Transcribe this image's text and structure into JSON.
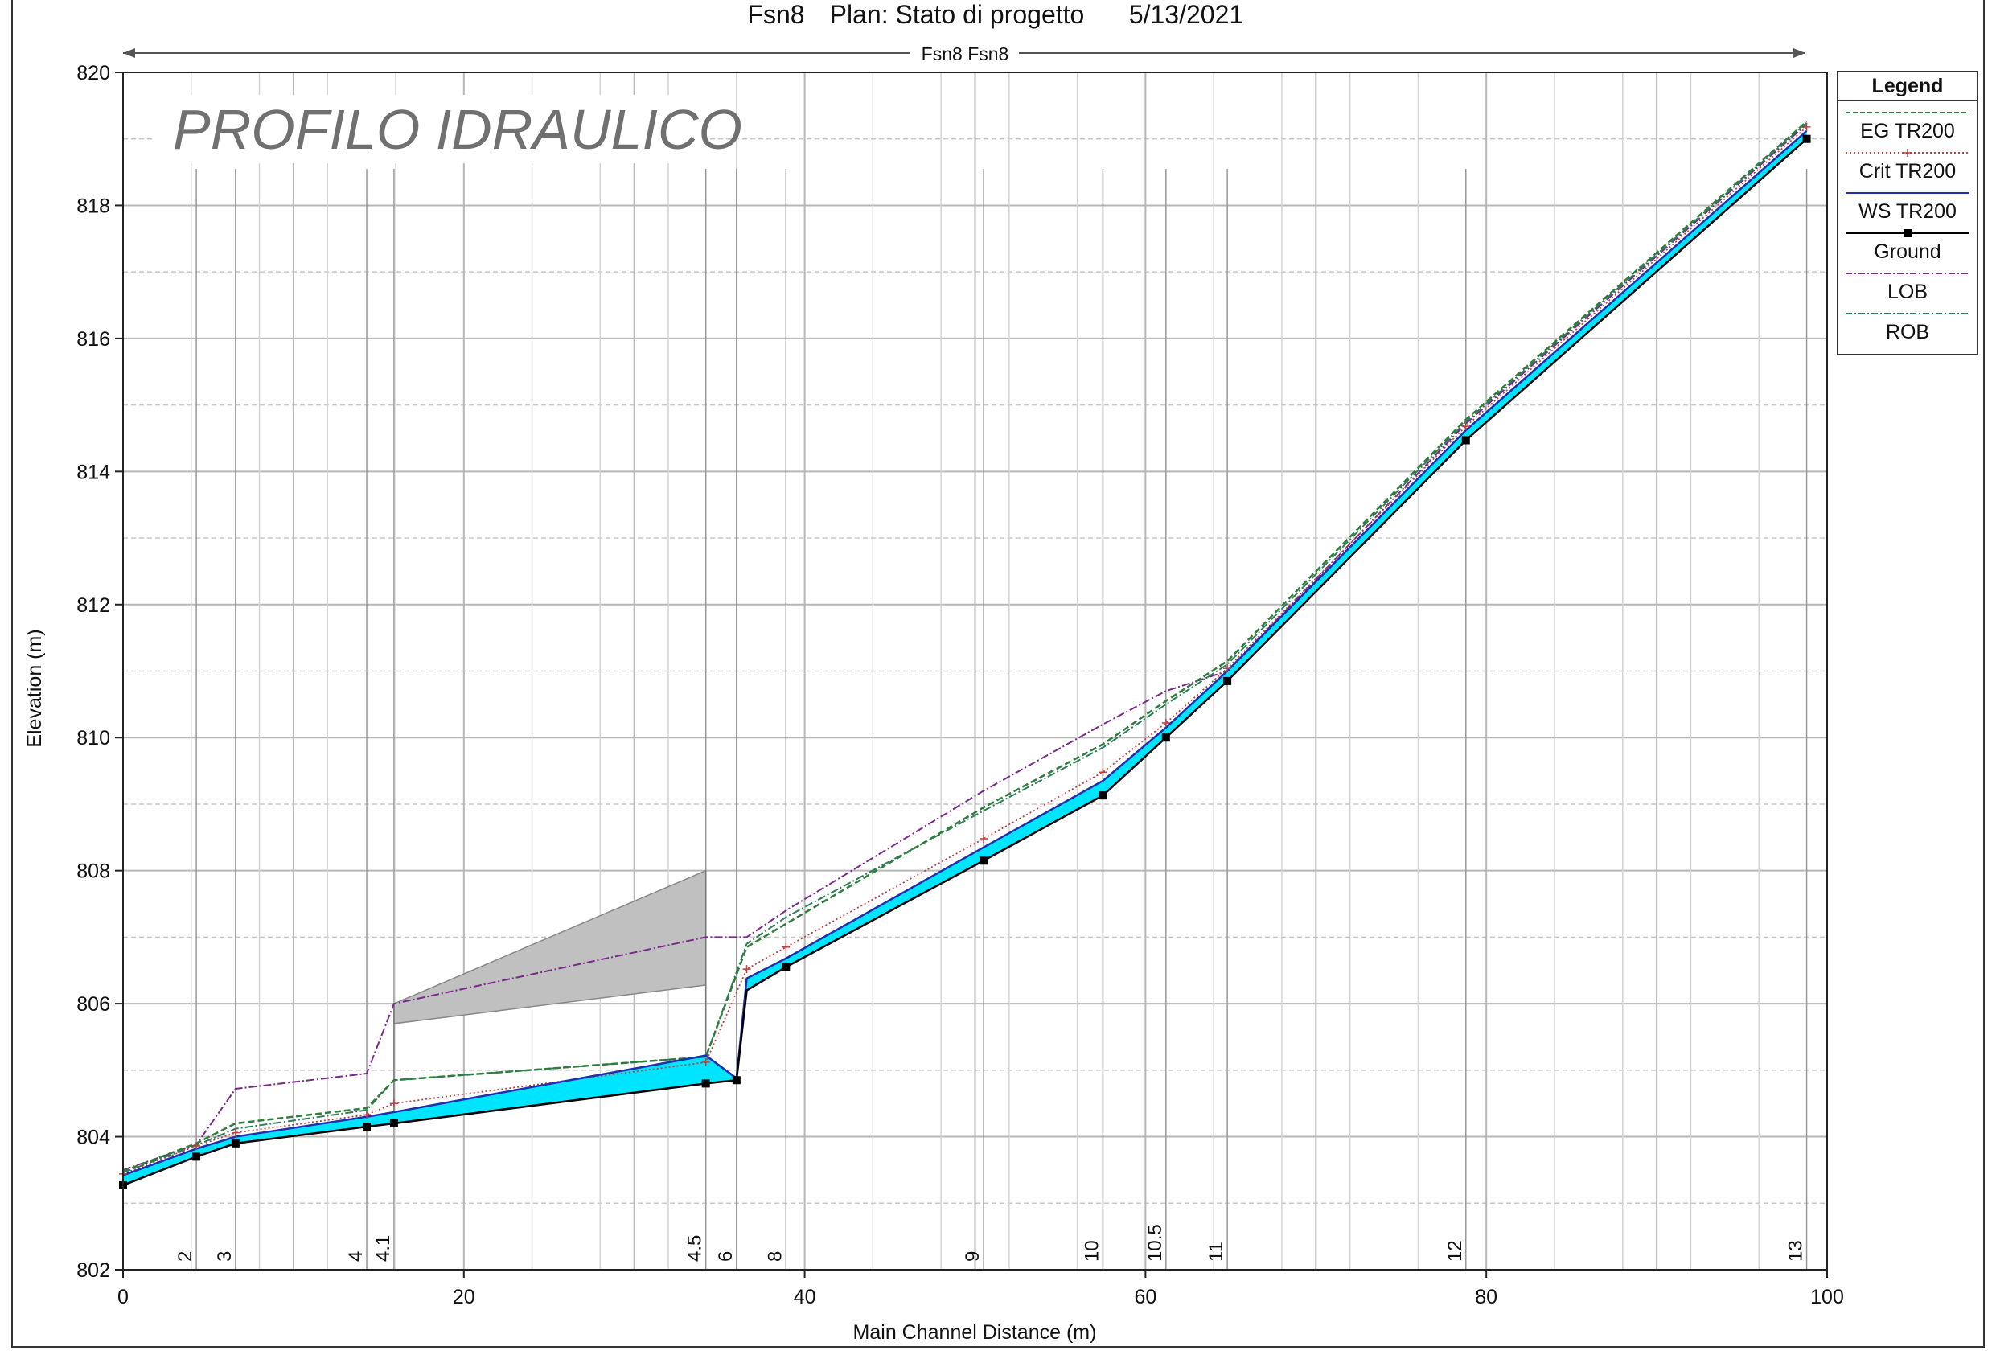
{
  "header": {
    "title": "Fsn8",
    "plan": "Plan: Stato di progetto",
    "date": "5/13/2021",
    "reach_label": "Fsn8 Fsn8"
  },
  "watermark": "PROFILO IDRAULICO",
  "legend": {
    "title": "Legend",
    "entries": [
      {
        "label": "EG  TR200",
        "color": "#2e7d3a",
        "style": "dashed"
      },
      {
        "label": "Crit  TR200",
        "color": "#c04040",
        "style": "dotted-plus"
      },
      {
        "label": "WS  TR200",
        "color": "#1f2fb0",
        "style": "solid"
      },
      {
        "label": "Ground",
        "color": "#000000",
        "style": "solid-square"
      },
      {
        "label": "LOB",
        "color": "#7a2a8a",
        "style": "dashdot"
      },
      {
        "label": "ROB",
        "color": "#2e7d5a",
        "style": "dashdot"
      }
    ]
  },
  "chart_data": {
    "type": "line",
    "xlabel": "Main Channel Distance (m)",
    "ylabel": "Elevation (m)",
    "xlim": [
      0,
      100
    ],
    "ylim": [
      802,
      820
    ],
    "xticks": [
      0,
      20,
      40,
      60,
      80,
      100
    ],
    "yticks": [
      802,
      804,
      806,
      808,
      810,
      812,
      814,
      816,
      818,
      820
    ],
    "grid": true,
    "legend_position": "right",
    "colors": {
      "water_fill": "#00e5ff",
      "eg": "#2e7d3a",
      "crit": "#c04040",
      "ws": "#1f2fb0",
      "ground": "#000000",
      "lob": "#7a2a8a",
      "rob": "#2e7d5a",
      "structure": "#c0c0c0"
    },
    "sections": [
      {
        "label": "2",
        "x": 4.3
      },
      {
        "label": "3",
        "x": 6.6
      },
      {
        "label": "4",
        "x": 14.3
      },
      {
        "label": "4.1",
        "x": 15.9
      },
      {
        "label": "4.5",
        "x": 34.2
      },
      {
        "label": "6",
        "x": 36.0
      },
      {
        "label": "8",
        "x": 38.9
      },
      {
        "label": "9",
        "x": 50.5
      },
      {
        "label": "10",
        "x": 57.5
      },
      {
        "label": "10.5",
        "x": 61.2
      },
      {
        "label": "11",
        "x": 64.8
      },
      {
        "label": "12",
        "x": 78.8
      },
      {
        "label": "13",
        "x": 98.8
      }
    ],
    "series": [
      {
        "name": "Ground",
        "x": [
          0,
          4.3,
          6.6,
          14.3,
          15.9,
          34.2,
          36.0,
          36.6,
          38.9,
          50.5,
          57.5,
          61.2,
          64.8,
          78.8,
          98.8
        ],
        "y": [
          803.27,
          803.7,
          803.9,
          804.15,
          804.2,
          804.8,
          804.85,
          806.2,
          806.55,
          808.15,
          809.13,
          810.0,
          810.85,
          814.47,
          819.0
        ]
      },
      {
        "name": "WS  TR200",
        "x": [
          0,
          4.3,
          6.6,
          14.3,
          15.9,
          34.2,
          36.0,
          36.6,
          38.9,
          50.5,
          57.5,
          61.2,
          64.8,
          78.8,
          98.8
        ],
        "y": [
          803.42,
          803.82,
          804.0,
          804.3,
          804.37,
          805.22,
          804.88,
          806.38,
          806.68,
          808.35,
          809.35,
          810.15,
          811.0,
          814.62,
          819.12
        ]
      },
      {
        "name": "Crit  TR200",
        "x": [
          0,
          4.3,
          6.6,
          14.3,
          15.9,
          34.2,
          36.6,
          38.9,
          50.5,
          57.5,
          61.2,
          64.8,
          78.8,
          98.8
        ],
        "y": [
          803.44,
          803.86,
          804.06,
          804.33,
          804.5,
          805.12,
          806.52,
          806.85,
          808.48,
          809.48,
          810.22,
          811.04,
          814.68,
          819.18
        ]
      },
      {
        "name": "EG  TR200",
        "x": [
          0,
          4.3,
          6.6,
          14.3,
          15.9,
          34.2,
          36.6,
          38.9,
          50.5,
          57.5,
          61.2,
          64.8,
          78.8,
          98.8
        ],
        "y": [
          803.48,
          803.9,
          804.2,
          804.43,
          804.85,
          805.2,
          806.85,
          807.2,
          808.95,
          809.9,
          810.55,
          811.15,
          814.78,
          819.26
        ]
      },
      {
        "name": "LOB",
        "x": [
          0,
          4.3,
          6.6,
          14.3,
          15.9,
          34.2,
          36.6,
          38.9,
          50.5,
          57.5,
          61.2,
          64.8,
          78.8,
          98.8
        ],
        "y": [
          803.5,
          803.88,
          804.72,
          804.95,
          806.0,
          807.0,
          807.0,
          807.4,
          809.2,
          810.2,
          810.7,
          811.0,
          814.72,
          819.22
        ]
      },
      {
        "name": "ROB",
        "x": [
          0,
          4.3,
          6.6,
          14.3,
          15.9,
          34.2,
          36.6,
          38.9,
          50.5,
          57.5,
          61.2,
          64.8,
          78.8,
          98.8
        ],
        "y": [
          803.46,
          803.87,
          804.12,
          804.4,
          804.85,
          805.2,
          806.9,
          807.3,
          808.9,
          809.85,
          810.5,
          811.1,
          814.75,
          819.24
        ]
      }
    ],
    "structure": {
      "x": [
        15.9,
        34.2
      ],
      "top": [
        806.0,
        808.0
      ],
      "bottom": [
        805.7,
        806.28
      ]
    }
  }
}
